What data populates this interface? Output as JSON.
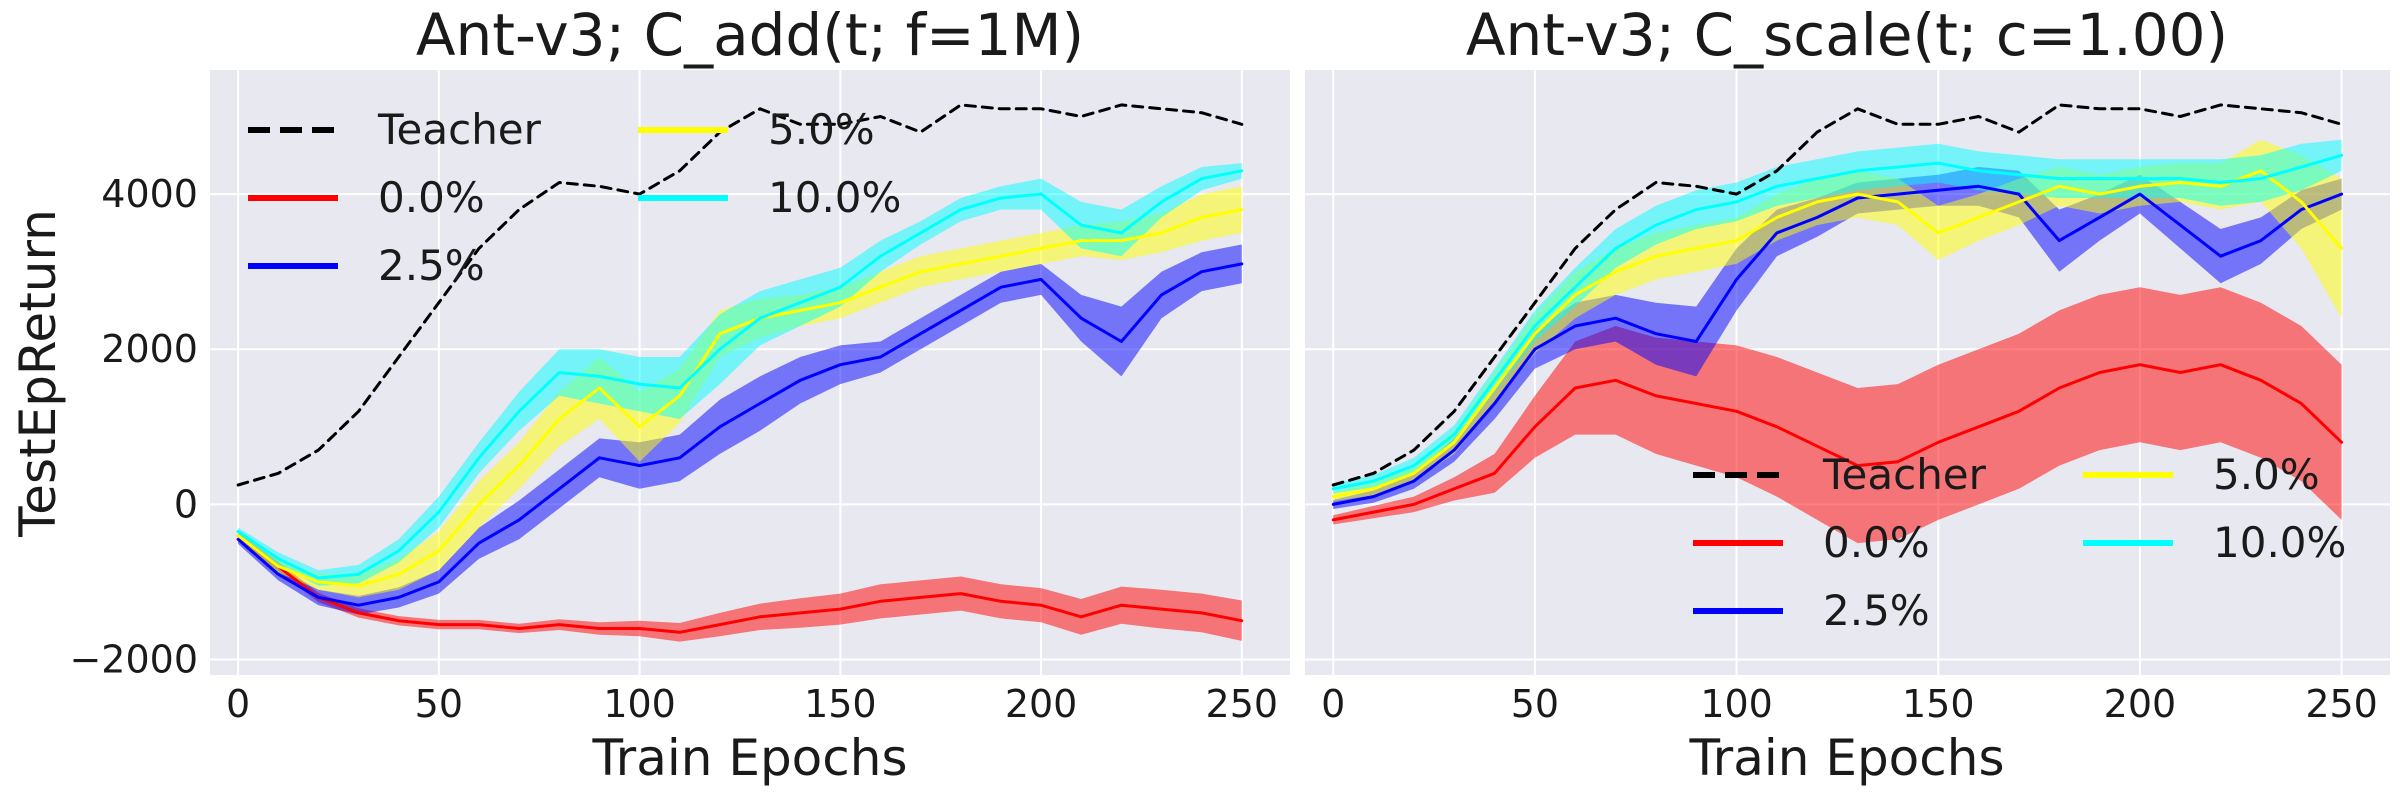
{
  "colors": {
    "Teacher": "#000000",
    "0.0%": "#ff0000",
    "2.5%": "#0000ff",
    "5.0%": "#ffff00",
    "10.0%": "#00ffff"
  },
  "chart_data": [
    {
      "type": "line",
      "title": "Ant-v3; C_add(t; f=1M)",
      "xlabel": "Train Epochs",
      "ylabel": "TestEpReturn",
      "xlim": [
        -7,
        262
      ],
      "ylim": [
        -2200,
        5600
      ],
      "xticks": [
        0,
        50,
        100,
        150,
        200,
        250
      ],
      "yticks": [
        -2000,
        0,
        2000,
        4000
      ],
      "xtick_labels": [
        "0",
        "50",
        "100",
        "150",
        "200",
        "250"
      ],
      "ytick_labels": [
        "−2000",
        "0",
        "2000",
        "4000"
      ],
      "legend_location": "upper-left",
      "legend": [
        "Teacher",
        "0.0%",
        "2.5%",
        "5.0%",
        "10.0%"
      ],
      "series": [
        {
          "name": "Teacher",
          "style": "dashed",
          "x": [
            0,
            10,
            20,
            30,
            40,
            50,
            60,
            70,
            80,
            90,
            100,
            110,
            120,
            130,
            140,
            150,
            160,
            170,
            180,
            190,
            200,
            210,
            220,
            230,
            240,
            250
          ],
          "y": [
            250,
            400,
            700,
            1200,
            1900,
            2600,
            3300,
            3800,
            4150,
            4100,
            4000,
            4300,
            4800,
            5100,
            4900,
            4900,
            5000,
            4800,
            5150,
            5100,
            5100,
            5000,
            5150,
            5100,
            5050,
            4900
          ]
        },
        {
          "name": "0.0%",
          "x": [
            0,
            10,
            20,
            30,
            40,
            50,
            60,
            70,
            80,
            90,
            100,
            110,
            120,
            130,
            140,
            150,
            160,
            170,
            180,
            190,
            200,
            210,
            220,
            230,
            240,
            250
          ],
          "y": [
            -400,
            -800,
            -1200,
            -1400,
            -1500,
            -1550,
            -1550,
            -1600,
            -1550,
            -1600,
            -1600,
            -1650,
            -1550,
            -1450,
            -1400,
            -1350,
            -1250,
            -1200,
            -1150,
            -1250,
            -1300,
            -1450,
            -1300,
            -1350,
            -1400,
            -1500
          ],
          "spread": [
            60,
            60,
            60,
            60,
            60,
            60,
            60,
            60,
            70,
            80,
            100,
            120,
            150,
            170,
            190,
            200,
            220,
            220,
            220,
            220,
            220,
            230,
            240,
            250,
            250,
            260
          ]
        },
        {
          "name": "2.5%",
          "x": [
            0,
            10,
            20,
            30,
            40,
            50,
            60,
            70,
            80,
            90,
            100,
            110,
            120,
            130,
            140,
            150,
            160,
            170,
            180,
            190,
            200,
            210,
            220,
            230,
            240,
            250
          ],
          "y": [
            -450,
            -900,
            -1200,
            -1300,
            -1200,
            -1000,
            -500,
            -200,
            200,
            600,
            500,
            600,
            1000,
            1300,
            1600,
            1800,
            1900,
            2200,
            2500,
            2800,
            2900,
            2400,
            2100,
            2700,
            3000,
            3100
          ],
          "spread": [
            60,
            80,
            100,
            120,
            130,
            150,
            200,
            250,
            250,
            250,
            300,
            300,
            350,
            350,
            300,
            250,
            200,
            200,
            200,
            200,
            200,
            300,
            450,
            300,
            250,
            250
          ]
        },
        {
          "name": "5.0%",
          "x": [
            0,
            10,
            20,
            30,
            40,
            50,
            60,
            70,
            80,
            90,
            100,
            110,
            120,
            130,
            140,
            150,
            160,
            170,
            180,
            190,
            200,
            210,
            220,
            230,
            240,
            250
          ],
          "y": [
            -400,
            -800,
            -1000,
            -1050,
            -900,
            -600,
            0,
            500,
            1100,
            1500,
            1000,
            1400,
            2200,
            2400,
            2500,
            2600,
            2800,
            3000,
            3100,
            3200,
            3300,
            3400,
            3400,
            3500,
            3700,
            3800
          ],
          "spread": [
            50,
            80,
            100,
            150,
            200,
            250,
            300,
            300,
            350,
            400,
            450,
            350,
            300,
            250,
            200,
            200,
            200,
            200,
            200,
            200,
            200,
            200,
            250,
            250,
            300,
            300
          ]
        },
        {
          "name": "10.0%",
          "x": [
            0,
            10,
            20,
            30,
            40,
            50,
            60,
            70,
            80,
            90,
            100,
            110,
            120,
            130,
            140,
            150,
            160,
            170,
            180,
            190,
            200,
            210,
            220,
            230,
            240,
            250
          ],
          "y": [
            -350,
            -700,
            -950,
            -900,
            -600,
            -100,
            600,
            1200,
            1700,
            1650,
            1550,
            1500,
            2000,
            2400,
            2600,
            2800,
            3200,
            3500,
            3800,
            3950,
            4000,
            3600,
            3500,
            3900,
            4200,
            4300
          ],
          "spread": [
            50,
            80,
            100,
            120,
            150,
            200,
            200,
            250,
            300,
            350,
            350,
            400,
            450,
            350,
            300,
            250,
            200,
            150,
            150,
            150,
            200,
            300,
            300,
            200,
            150,
            100
          ]
        }
      ]
    },
    {
      "type": "line",
      "title": "Ant-v3; C_scale(t; c=1.00)",
      "xlabel": "Train Epochs",
      "ylabel": "",
      "xlim": [
        -7,
        262
      ],
      "ylim": [
        -2200,
        5600
      ],
      "xticks": [
        0,
        50,
        100,
        150,
        200,
        250
      ],
      "yticks": [
        -2000,
        0,
        2000,
        4000
      ],
      "xtick_labels": [
        "0",
        "50",
        "100",
        "150",
        "200",
        "250"
      ],
      "ytick_labels": [],
      "legend_location": "lower-right",
      "legend": [
        "Teacher",
        "0.0%",
        "2.5%",
        "5.0%",
        "10.0%"
      ],
      "series": [
        {
          "name": "Teacher",
          "style": "dashed",
          "x": [
            0,
            10,
            20,
            30,
            40,
            50,
            60,
            70,
            80,
            90,
            100,
            110,
            120,
            130,
            140,
            150,
            160,
            170,
            180,
            190,
            200,
            210,
            220,
            230,
            240,
            250
          ],
          "y": [
            250,
            400,
            700,
            1200,
            1900,
            2600,
            3300,
            3800,
            4150,
            4100,
            4000,
            4300,
            4800,
            5100,
            4900,
            4900,
            5000,
            4800,
            5150,
            5100,
            5100,
            5000,
            5150,
            5100,
            5050,
            4900
          ]
        },
        {
          "name": "0.0%",
          "x": [
            0,
            10,
            20,
            30,
            40,
            50,
            60,
            70,
            80,
            90,
            100,
            110,
            120,
            130,
            140,
            150,
            160,
            170,
            180,
            190,
            200,
            210,
            220,
            230,
            240,
            250
          ],
          "y": [
            -200,
            -100,
            0,
            200,
            400,
            1000,
            1500,
            1600,
            1400,
            1300,
            1200,
            1000,
            750,
            500,
            550,
            800,
            1000,
            1200,
            1500,
            1700,
            1800,
            1700,
            1800,
            1600,
            1300,
            800
          ],
          "spread": [
            60,
            80,
            100,
            150,
            250,
            400,
            600,
            700,
            750,
            800,
            850,
            900,
            950,
            1000,
            1000,
            1000,
            1000,
            1000,
            1000,
            1000,
            1000,
            1000,
            1000,
            1000,
            1000,
            1000
          ]
        },
        {
          "name": "2.5%",
          "x": [
            0,
            10,
            20,
            30,
            40,
            50,
            60,
            70,
            80,
            90,
            100,
            110,
            120,
            130,
            140,
            150,
            160,
            170,
            180,
            190,
            200,
            210,
            220,
            230,
            240,
            250
          ],
          "y": [
            0,
            100,
            300,
            700,
            1300,
            2000,
            2300,
            2400,
            2200,
            2100,
            2900,
            3500,
            3700,
            3950,
            4000,
            4050,
            4100,
            4000,
            3400,
            3700,
            4000,
            3600,
            3200,
            3400,
            3800,
            4000
          ],
          "spread": [
            60,
            80,
            100,
            150,
            200,
            250,
            300,
            300,
            400,
            450,
            400,
            300,
            250,
            200,
            200,
            200,
            250,
            300,
            400,
            300,
            250,
            300,
            350,
            300,
            250,
            200
          ]
        },
        {
          "name": "5.0%",
          "x": [
            0,
            10,
            20,
            30,
            40,
            50,
            60,
            70,
            80,
            90,
            100,
            110,
            120,
            130,
            140,
            150,
            160,
            170,
            180,
            190,
            200,
            210,
            220,
            230,
            240,
            250
          ],
          "y": [
            100,
            200,
            400,
            800,
            1500,
            2200,
            2700,
            3000,
            3200,
            3300,
            3400,
            3700,
            3900,
            4000,
            3900,
            3500,
            3700,
            3900,
            4100,
            4000,
            4100,
            4150,
            4100,
            4300,
            3900,
            3300
          ],
          "spread": [
            60,
            80,
            100,
            150,
            200,
            250,
            300,
            300,
            300,
            300,
            300,
            300,
            300,
            300,
            300,
            350,
            300,
            300,
            250,
            250,
            250,
            250,
            300,
            400,
            600,
            900
          ]
        },
        {
          "name": "10.0%",
          "x": [
            0,
            10,
            20,
            30,
            40,
            50,
            60,
            70,
            80,
            90,
            100,
            110,
            120,
            130,
            140,
            150,
            160,
            170,
            180,
            190,
            200,
            210,
            220,
            230,
            240,
            250
          ],
          "y": [
            200,
            300,
            500,
            900,
            1600,
            2300,
            2800,
            3300,
            3600,
            3800,
            3900,
            4100,
            4200,
            4300,
            4350,
            4400,
            4300,
            4250,
            4200,
            4200,
            4200,
            4200,
            4150,
            4200,
            4350,
            4500
          ],
          "spread": [
            60,
            80,
            100,
            120,
            150,
            200,
            250,
            250,
            250,
            250,
            250,
            250,
            250,
            250,
            250,
            250,
            250,
            250,
            250,
            250,
            250,
            250,
            300,
            300,
            300,
            200
          ]
        }
      ]
    }
  ]
}
